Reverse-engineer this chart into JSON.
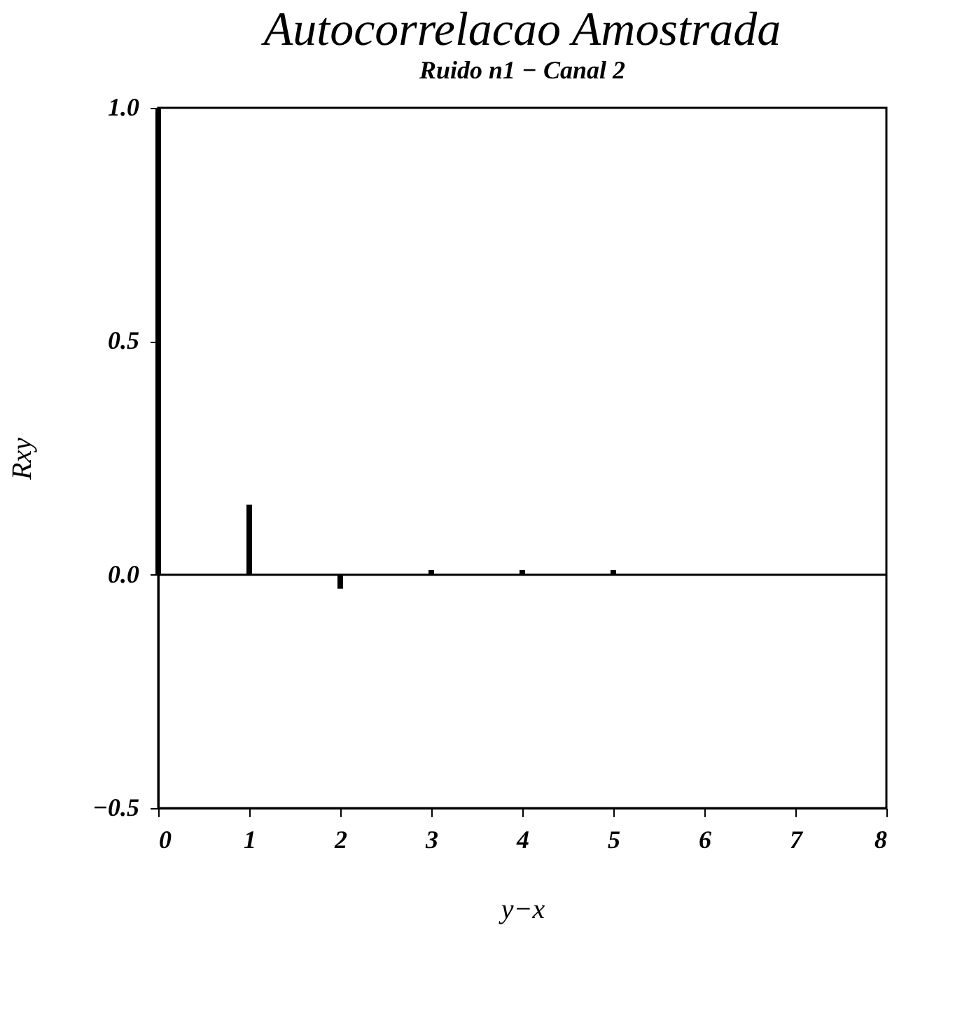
{
  "chart_data": {
    "type": "bar",
    "title": "Autocorrelacao Amostrada",
    "subtitle": "Ruido n1 − Canal 2",
    "xlabel": "y−x",
    "ylabel": "Rxy",
    "x": [
      0,
      1,
      2,
      3,
      4,
      5,
      6,
      7
    ],
    "values": [
      1.0,
      0.15,
      -0.03,
      0.01,
      0.01,
      0.01,
      0.0,
      0.0
    ],
    "color": "#000000",
    "xlim": [
      0,
      8
    ],
    "xticks": [
      0,
      1,
      2,
      3,
      4,
      5,
      6,
      7,
      8
    ],
    "ylim": [
      -0.5,
      1.0
    ],
    "yticks": [
      -0.5,
      {
        "value": 0,
        "label": "0.0"
      },
      0.5,
      {
        "value": 1,
        "label": "1.0"
      }
    ],
    "ref_lines": [
      {
        "axis": "y",
        "value": 0
      }
    ],
    "grid": false
  }
}
